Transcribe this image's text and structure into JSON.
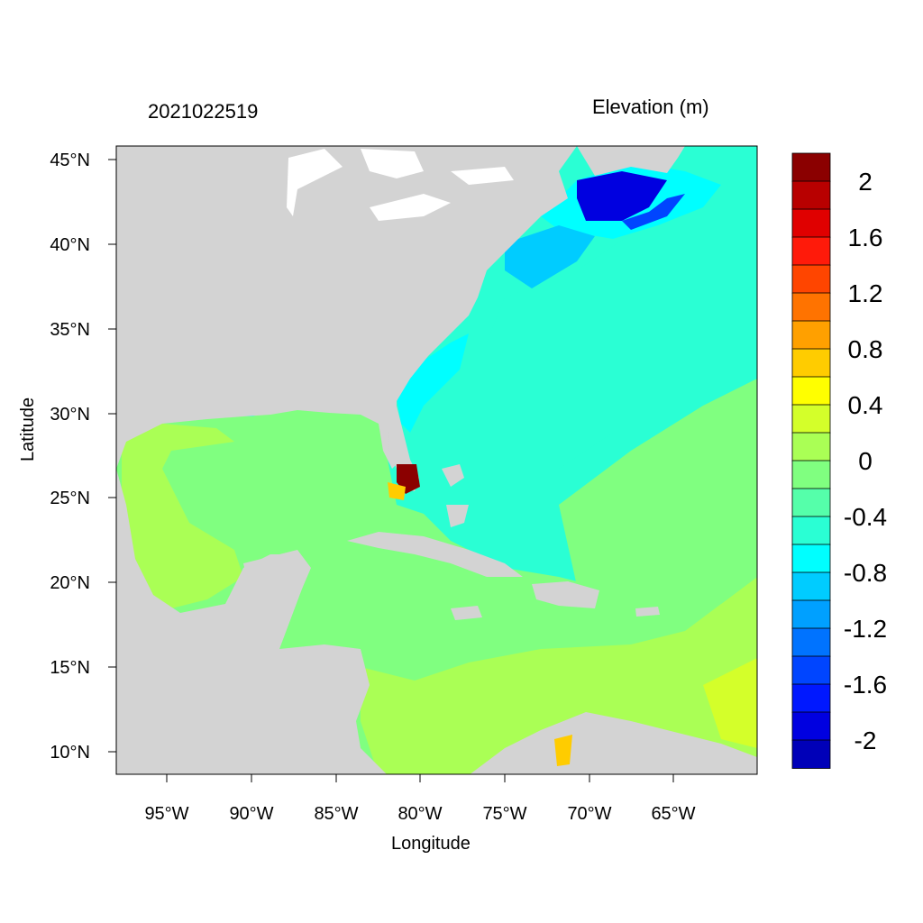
{
  "plot": {
    "date_label": "2021022519",
    "variable_label": "Elevation (m)",
    "x_axis_label": "Longitude",
    "y_axis_label": "Latitude"
  },
  "axes": {
    "lon_ticks": [
      "95°W",
      "90°W",
      "85°W",
      "80°W",
      "75°W",
      "70°W",
      "65°W"
    ],
    "lat_ticks": [
      "45°N",
      "40°N",
      "35°N",
      "30°N",
      "25°N",
      "20°N",
      "15°N",
      "10°N"
    ]
  },
  "colorbar": {
    "labels": [
      "2",
      "1.6",
      "1.2",
      "0.8",
      "0.4",
      "0",
      "-0.4",
      "-0.8",
      "-1.2",
      "-1.6",
      "-2"
    ],
    "colors": [
      "#8b0000",
      "#b80000",
      "#e00000",
      "#ff1a0a",
      "#ff4500",
      "#ff7300",
      "#ffa000",
      "#ffcc00",
      "#ffff00",
      "#d4ff2a",
      "#aaff55",
      "#80ff80",
      "#55ffaa",
      "#2affd4",
      "#00ffff",
      "#00ccff",
      "#00a0ff",
      "#0073ff",
      "#0045ff",
      "#0018ff",
      "#0000e0",
      "#0000b8"
    ]
  },
  "colors": {
    "land": "#d3d3d3",
    "ocean_atlantic": "#2affd4",
    "ocean_gulf": "#80ff80",
    "shelf_low": "#aaff55",
    "north_shelf": "#0000e0",
    "florida_high": "#8b0000"
  }
}
